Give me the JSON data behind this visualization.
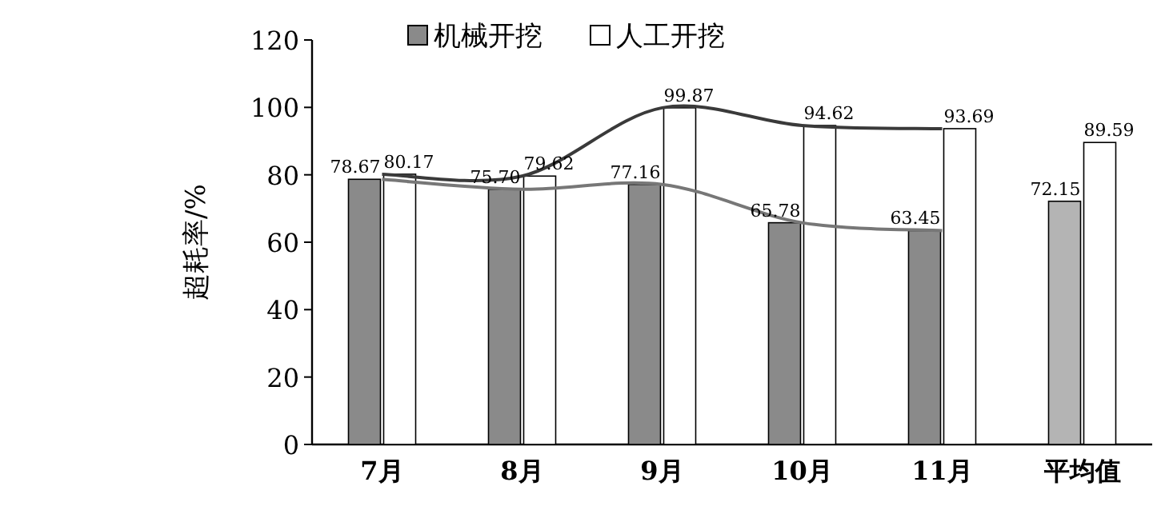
{
  "chart_data": {
    "type": "bar",
    "ylabel": "超耗率/%",
    "categories": [
      "7月",
      "8月",
      "9月",
      "10月",
      "11月",
      "平均值"
    ],
    "series": [
      {
        "name": "机械开挖",
        "color": "#8a8a8a",
        "colors": [
          "#8a8a8a",
          "#8a8a8a",
          "#8a8a8a",
          "#8a8a8a",
          "#8a8a8a",
          "#b4b4b4"
        ],
        "values": [
          78.67,
          75.7,
          77.16,
          65.78,
          63.45,
          72.15
        ],
        "value_labels": [
          "78.67",
          "75.70",
          "77.16",
          "65.78",
          "63.45",
          "72.15"
        ]
      },
      {
        "name": "人工开挖",
        "color": "#ffffff",
        "values": [
          80.17,
          79.62,
          99.87,
          94.62,
          93.69,
          89.59
        ],
        "value_labels": [
          "80.17",
          "79.62",
          "99.87",
          "94.62",
          "93.69",
          "89.59"
        ]
      },
      {
        "type": "line",
        "color": "#777777",
        "values": [
          78.67,
          75.7,
          77.16,
          65.78,
          63.45,
          null
        ]
      },
      {
        "type": "line",
        "color": "#3a3a3a",
        "values": [
          80.17,
          79.62,
          99.87,
          94.62,
          93.69,
          null
        ]
      }
    ],
    "ylim": [
      0,
      120
    ],
    "yticks": [
      0,
      20,
      40,
      60,
      80,
      100,
      120
    ],
    "legend": "top left",
    "grid": false
  }
}
